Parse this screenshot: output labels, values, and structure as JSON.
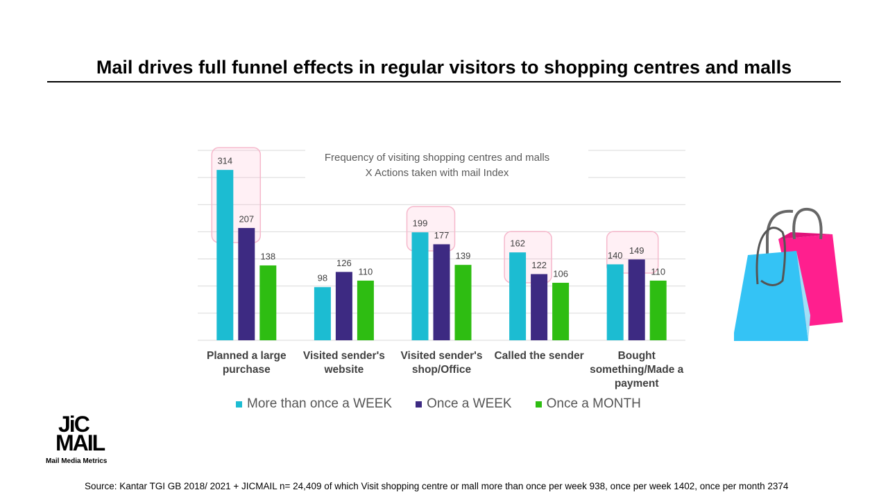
{
  "slide_title": "Mail drives full funnel effects in regular visitors to shopping centres and malls",
  "logo": {
    "line1": "JiC",
    "line2": "MAIL",
    "tagline": "Mail Media Metrics"
  },
  "source": "Source:  Kantar TGI GB 2018/ 2021 + JICMAIL  n= 24,409 of which Visit shopping centre or mall more than once per week 938, once per week 1402, once per month 2374",
  "chart_data": {
    "type": "bar",
    "title": "Frequency of visiting shopping centres and malls",
    "subtitle": "X Actions taken with mail Index",
    "categories": [
      "Planned a large purchase",
      "Visited sender's website",
      "Visited sender's shop/Office",
      "Called the sender",
      "Bought something/Made a payment"
    ],
    "series": [
      {
        "name": "More than once a WEEK",
        "color": "#1cbcd2",
        "values": [
          314,
          98,
          199,
          162,
          140
        ]
      },
      {
        "name": "Once a WEEK",
        "color": "#3d2a82",
        "values": [
          207,
          126,
          177,
          122,
          149
        ]
      },
      {
        "name": "Once a MONTH",
        "color": "#2ebd12",
        "values": [
          138,
          110,
          139,
          106,
          110
        ]
      }
    ],
    "ylim": [
      0,
      350
    ],
    "yticks": [
      0,
      50,
      100,
      150,
      200,
      250,
      300,
      350
    ],
    "grid": true,
    "legend": "bottom"
  }
}
